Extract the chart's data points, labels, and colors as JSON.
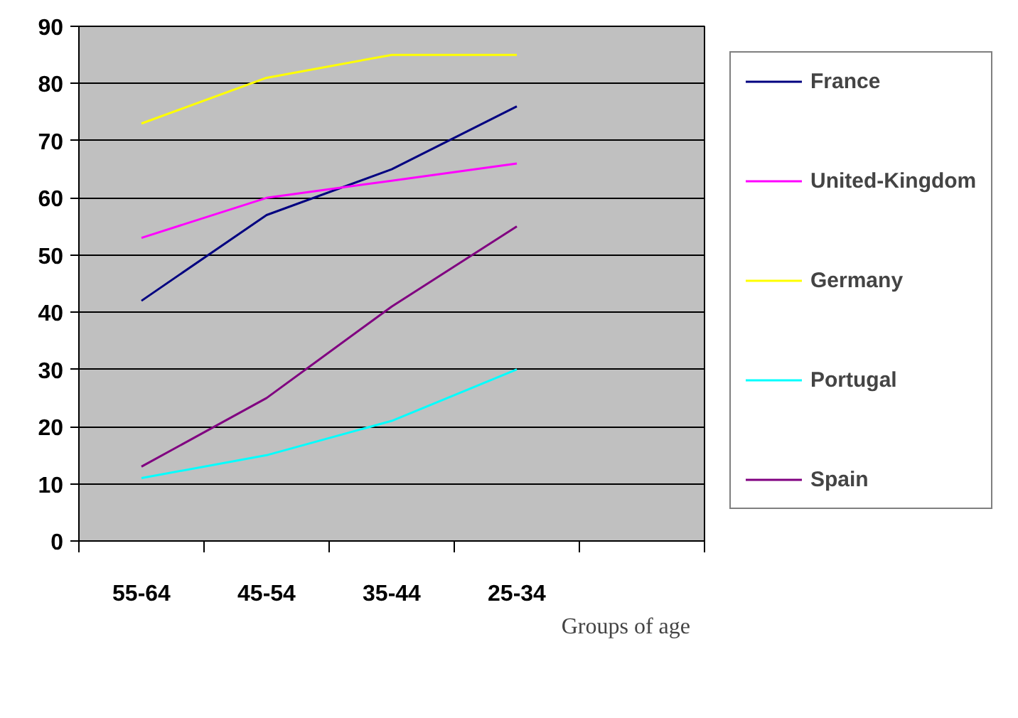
{
  "chart_data": {
    "type": "line",
    "xlabel": "Groups of age",
    "categories": [
      "55-64",
      "45-54",
      "35-44",
      "25-34",
      null
    ],
    "ylim": [
      0,
      90
    ],
    "yticks": [
      0,
      10,
      20,
      30,
      40,
      50,
      60,
      70,
      80,
      90
    ],
    "grid": "y",
    "legend": "right",
    "marker": "none",
    "line_style": "solid",
    "series": [
      {
        "name": "France",
        "color": "#000080",
        "values": [
          42,
          57,
          65,
          76,
          null
        ]
      },
      {
        "name": "United-Kingdom",
        "color": "#ff00ff",
        "values": [
          53,
          60,
          63,
          66,
          null
        ]
      },
      {
        "name": "Germany",
        "color": "#ffff00",
        "values": [
          73,
          81,
          85,
          85,
          null
        ]
      },
      {
        "name": "Portugal",
        "color": "#00ffff",
        "values": [
          11,
          15,
          21,
          30,
          null
        ]
      },
      {
        "name": "Spain",
        "color": "#800080",
        "values": [
          13,
          25,
          41,
          55,
          null
        ]
      }
    ]
  }
}
